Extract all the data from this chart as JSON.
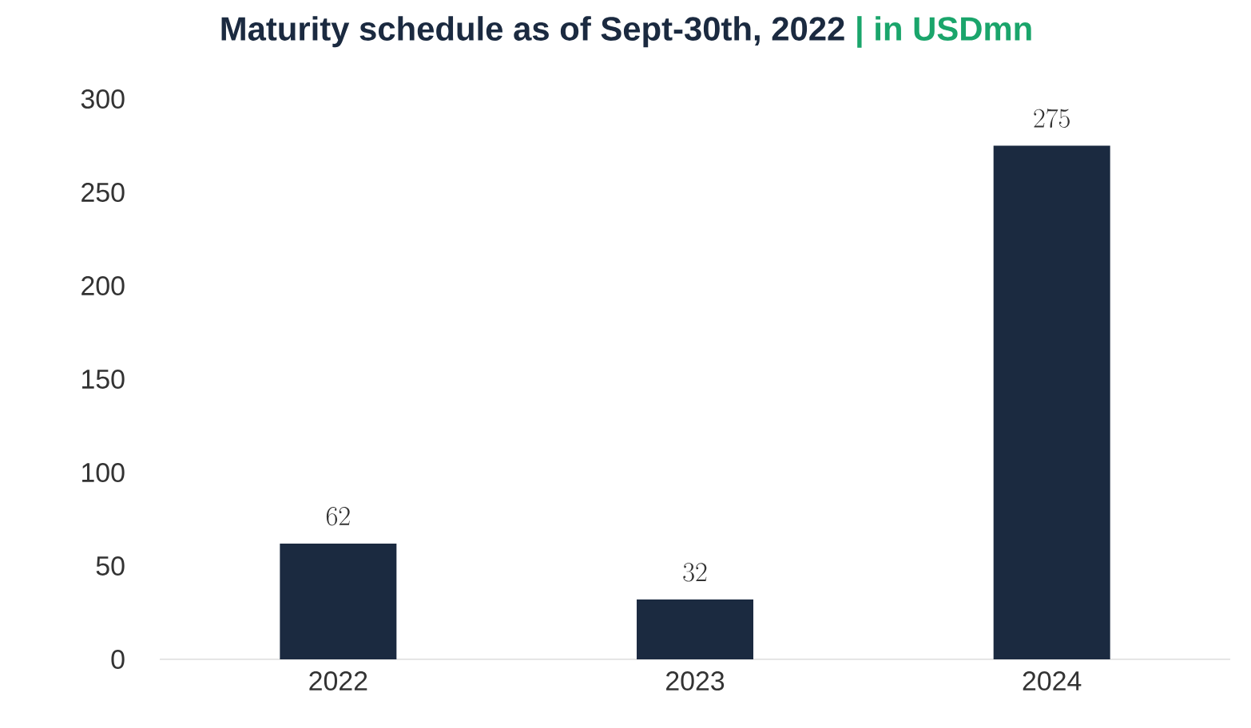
{
  "chart_data": {
    "type": "bar",
    "title": "Maturity schedule as of Sept-30th, 2022",
    "subtitle": "| in USDmn",
    "categories": [
      "2022",
      "2023",
      "2024"
    ],
    "values": [
      62,
      32,
      275
    ],
    "color": "#1b2a40",
    "ylim": [
      0,
      300
    ],
    "yticks": [
      0,
      50,
      100,
      150,
      200,
      250,
      300
    ],
    "data_labels": true
  }
}
